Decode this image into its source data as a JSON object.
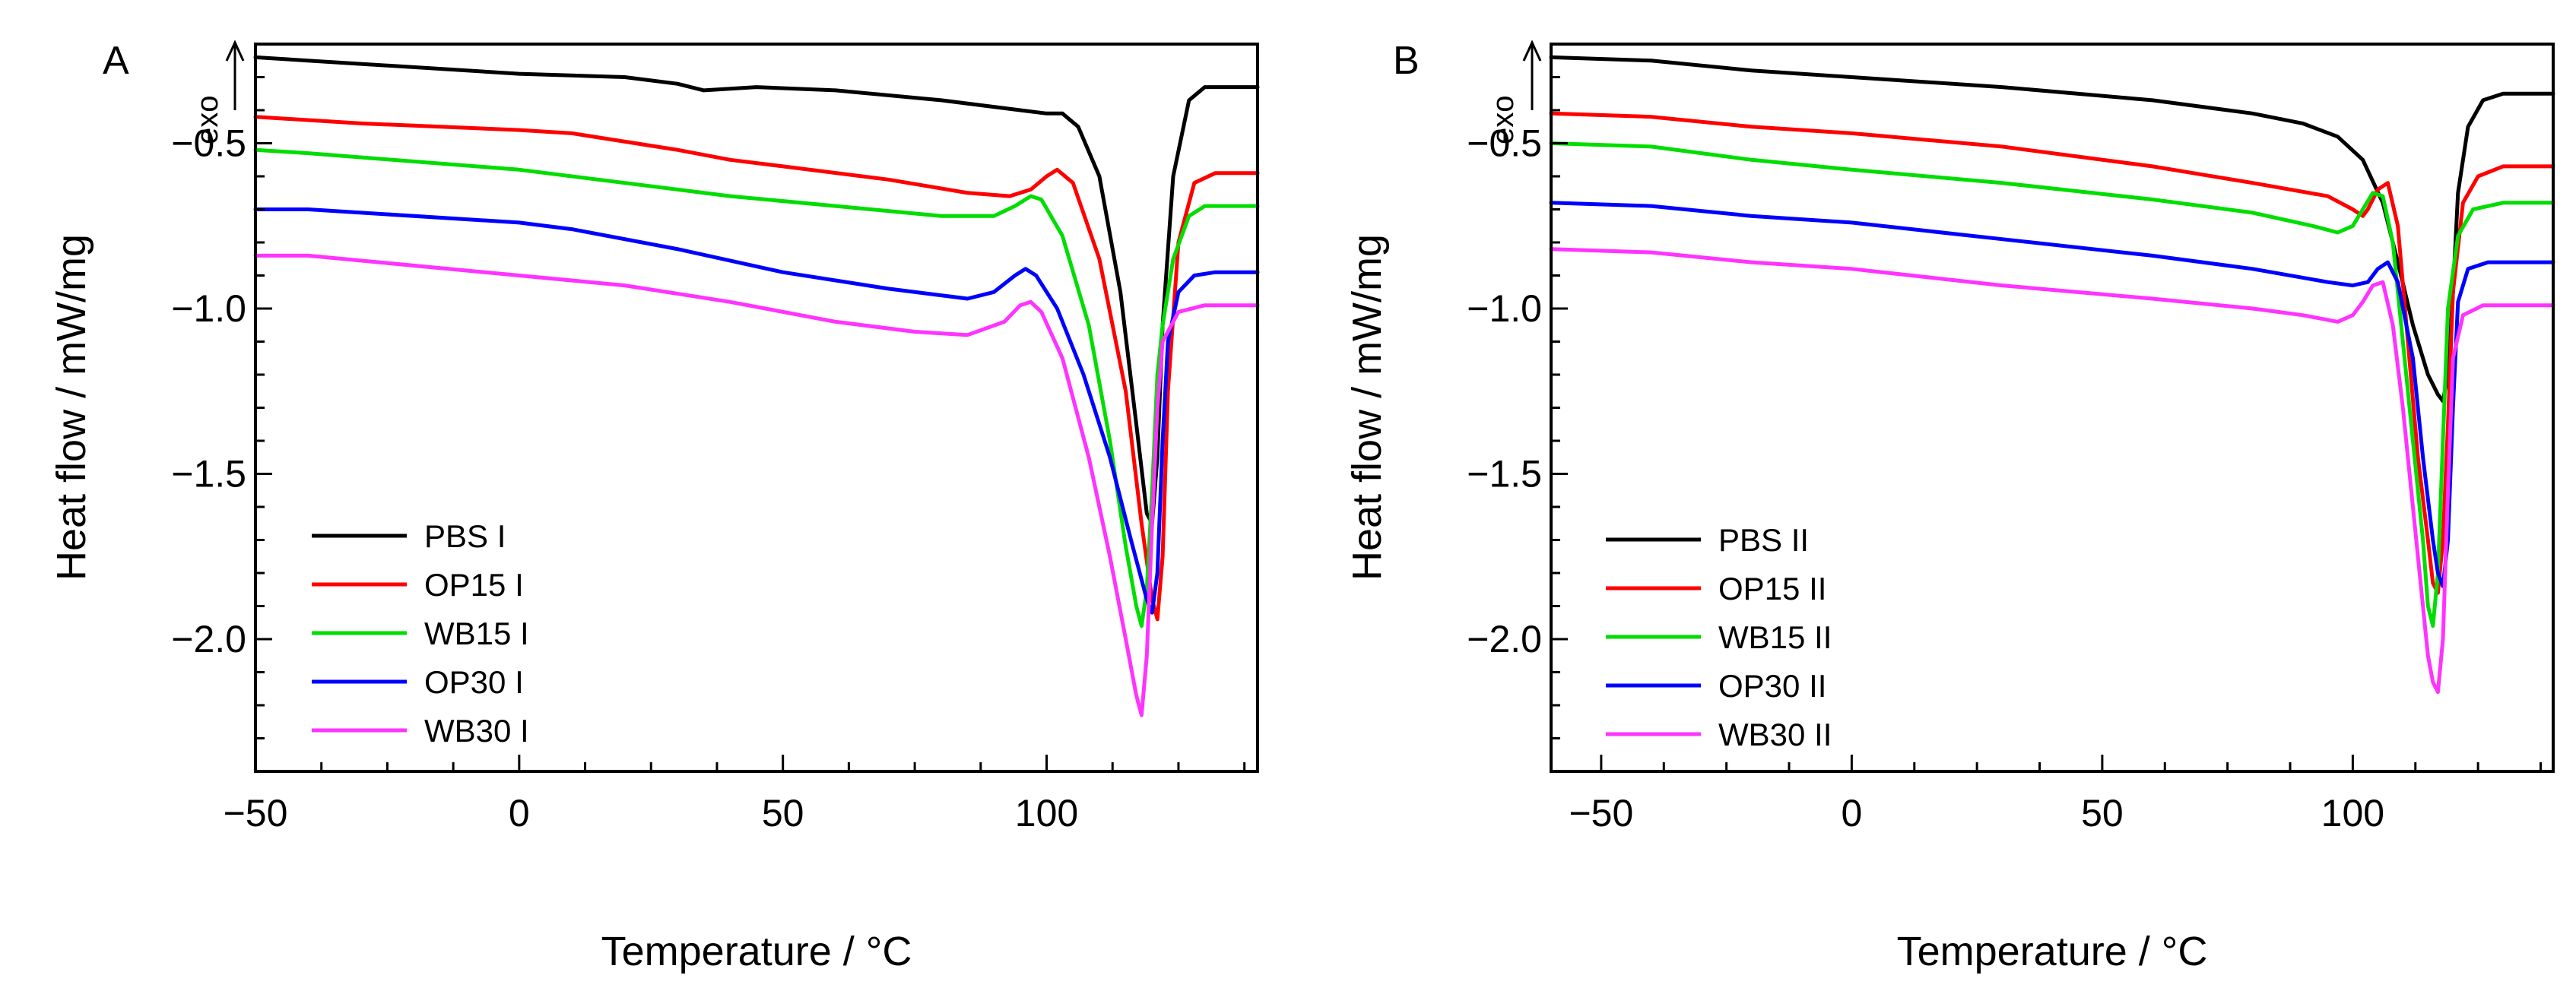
{
  "chart_data": [
    {
      "panel_label": "A",
      "type": "line",
      "xlabel": "Temperature / °C",
      "ylabel": "Heat flow / mW/mg",
      "exo_label": "exo",
      "xlim": [
        -50,
        140
      ],
      "ylim": [
        -2.4,
        -0.2
      ],
      "xticks": [
        -50,
        0,
        50,
        100
      ],
      "yticks": [
        -2.0,
        -1.5,
        -1.0,
        -0.5
      ],
      "xtick_labels": [
        "−50",
        "0",
        "50",
        "100"
      ],
      "ytick_labels": [
        "−2.0",
        "−1.5",
        "−1.0",
        "−0.5"
      ],
      "grid": false,
      "legend_position": "bottom-left",
      "series": [
        {
          "name": "PBS I",
          "color": "#000000",
          "points": [
            [
              -50,
              -0.24
            ],
            [
              -30,
              -0.26
            ],
            [
              0,
              -0.29
            ],
            [
              20,
              -0.3
            ],
            [
              30,
              -0.32
            ],
            [
              35,
              -0.34
            ],
            [
              45,
              -0.33
            ],
            [
              60,
              -0.34
            ],
            [
              80,
              -0.37
            ],
            [
              95,
              -0.4
            ],
            [
              100,
              -0.41
            ],
            [
              103,
              -0.41
            ],
            [
              106,
              -0.45
            ],
            [
              110,
              -0.6
            ],
            [
              114,
              -0.95
            ],
            [
              117,
              -1.35
            ],
            [
              119,
              -1.62
            ],
            [
              120,
              -1.65
            ],
            [
              121,
              -1.45
            ],
            [
              122,
              -1.05
            ],
            [
              124,
              -0.6
            ],
            [
              127,
              -0.37
            ],
            [
              130,
              -0.33
            ],
            [
              140,
              -0.33
            ]
          ]
        },
        {
          "name": "OP15 I",
          "color": "#ff0000",
          "points": [
            [
              -50,
              -0.42
            ],
            [
              -30,
              -0.44
            ],
            [
              0,
              -0.46
            ],
            [
              10,
              -0.47
            ],
            [
              30,
              -0.52
            ],
            [
              40,
              -0.55
            ],
            [
              50,
              -0.57
            ],
            [
              70,
              -0.61
            ],
            [
              85,
              -0.65
            ],
            [
              93,
              -0.66
            ],
            [
              97,
              -0.64
            ],
            [
              100,
              -0.6
            ],
            [
              102,
              -0.58
            ],
            [
              105,
              -0.62
            ],
            [
              110,
              -0.85
            ],
            [
              115,
              -1.25
            ],
            [
              118,
              -1.65
            ],
            [
              120,
              -1.88
            ],
            [
              121,
              -1.94
            ],
            [
              122,
              -1.75
            ],
            [
              123,
              -1.25
            ],
            [
              125,
              -0.8
            ],
            [
              128,
              -0.62
            ],
            [
              132,
              -0.59
            ],
            [
              140,
              -0.59
            ]
          ]
        },
        {
          "name": "WB15 I",
          "color": "#00dd00",
          "points": [
            [
              -50,
              -0.52
            ],
            [
              -40,
              -0.53
            ],
            [
              0,
              -0.58
            ],
            [
              20,
              -0.62
            ],
            [
              40,
              -0.66
            ],
            [
              60,
              -0.69
            ],
            [
              80,
              -0.72
            ],
            [
              90,
              -0.72
            ],
            [
              94,
              -0.69
            ],
            [
              97,
              -0.66
            ],
            [
              99,
              -0.67
            ],
            [
              103,
              -0.78
            ],
            [
              108,
              -1.05
            ],
            [
              112,
              -1.4
            ],
            [
              115,
              -1.72
            ],
            [
              117,
              -1.9
            ],
            [
              118,
              -1.96
            ],
            [
              119,
              -1.85
            ],
            [
              120,
              -1.55
            ],
            [
              121,
              -1.2
            ],
            [
              122,
              -1.05
            ],
            [
              124,
              -0.85
            ],
            [
              127,
              -0.72
            ],
            [
              130,
              -0.69
            ],
            [
              140,
              -0.69
            ]
          ]
        },
        {
          "name": "OP30 I",
          "color": "#0000ff",
          "points": [
            [
              -50,
              -0.7
            ],
            [
              -40,
              -0.7
            ],
            [
              0,
              -0.74
            ],
            [
              10,
              -0.76
            ],
            [
              30,
              -0.82
            ],
            [
              50,
              -0.89
            ],
            [
              70,
              -0.94
            ],
            [
              85,
              -0.97
            ],
            [
              90,
              -0.95
            ],
            [
              94,
              -0.9
            ],
            [
              96,
              -0.88
            ],
            [
              98,
              -0.9
            ],
            [
              102,
              -1.0
            ],
            [
              107,
              -1.2
            ],
            [
              112,
              -1.45
            ],
            [
              116,
              -1.7
            ],
            [
              119,
              -1.88
            ],
            [
              120,
              -1.92
            ],
            [
              121,
              -1.8
            ],
            [
              122,
              -1.4
            ],
            [
              123,
              -1.1
            ],
            [
              125,
              -0.95
            ],
            [
              128,
              -0.9
            ],
            [
              132,
              -0.89
            ],
            [
              140,
              -0.89
            ]
          ]
        },
        {
          "name": "WB30 I",
          "color": "#ff33ff",
          "points": [
            [
              -50,
              -0.84
            ],
            [
              -40,
              -0.84
            ],
            [
              0,
              -0.9
            ],
            [
              20,
              -0.93
            ],
            [
              40,
              -0.98
            ],
            [
              60,
              -1.04
            ],
            [
              75,
              -1.07
            ],
            [
              85,
              -1.08
            ],
            [
              92,
              -1.04
            ],
            [
              95,
              -0.99
            ],
            [
              97,
              -0.98
            ],
            [
              99,
              -1.01
            ],
            [
              103,
              -1.15
            ],
            [
              108,
              -1.45
            ],
            [
              112,
              -1.75
            ],
            [
              115,
              -2.0
            ],
            [
              117,
              -2.17
            ],
            [
              118,
              -2.23
            ],
            [
              119,
              -2.05
            ],
            [
              120,
              -1.65
            ],
            [
              121,
              -1.3
            ],
            [
              122,
              -1.1
            ],
            [
              125,
              -1.01
            ],
            [
              130,
              -0.99
            ],
            [
              140,
              -0.99
            ]
          ]
        }
      ]
    },
    {
      "panel_label": "B",
      "type": "line",
      "xlabel": "Temperature / °C",
      "ylabel": "Heat flow / mW/mg",
      "exo_label": "exo",
      "xlim": [
        -60,
        140
      ],
      "ylim": [
        -2.4,
        -0.2
      ],
      "xticks": [
        -50,
        0,
        50,
        100
      ],
      "yticks": [
        -2.0,
        -1.5,
        -1.0,
        -0.5
      ],
      "xtick_labels": [
        "−50",
        "0",
        "50",
        "100"
      ],
      "ytick_labels": [
        "−2.0",
        "−1.5",
        "−1.0",
        "−0.5"
      ],
      "grid": false,
      "legend_position": "bottom-left",
      "series": [
        {
          "name": "PBS II",
          "color": "#000000",
          "points": [
            [
              -60,
              -0.24
            ],
            [
              -40,
              -0.25
            ],
            [
              -20,
              -0.28
            ],
            [
              0,
              -0.3
            ],
            [
              30,
              -0.33
            ],
            [
              60,
              -0.37
            ],
            [
              80,
              -0.41
            ],
            [
              90,
              -0.44
            ],
            [
              97,
              -0.48
            ],
            [
              102,
              -0.55
            ],
            [
              106,
              -0.68
            ],
            [
              109,
              -0.86
            ],
            [
              112,
              -1.05
            ],
            [
              115,
              -1.2
            ],
            [
              117,
              -1.26
            ],
            [
              118,
              -1.28
            ],
            [
              119,
              -1.2
            ],
            [
              120,
              -0.95
            ],
            [
              121,
              -0.65
            ],
            [
              123,
              -0.45
            ],
            [
              126,
              -0.37
            ],
            [
              130,
              -0.35
            ],
            [
              140,
              -0.35
            ]
          ]
        },
        {
          "name": "OP15 II",
          "color": "#ff0000",
          "points": [
            [
              -60,
              -0.41
            ],
            [
              -40,
              -0.42
            ],
            [
              -20,
              -0.45
            ],
            [
              0,
              -0.47
            ],
            [
              30,
              -0.51
            ],
            [
              60,
              -0.57
            ],
            [
              80,
              -0.62
            ],
            [
              95,
              -0.66
            ],
            [
              100,
              -0.7
            ],
            [
              102,
              -0.72
            ],
            [
              103,
              -0.7
            ],
            [
              105,
              -0.64
            ],
            [
              107,
              -0.62
            ],
            [
              109,
              -0.75
            ],
            [
              111,
              -1.1
            ],
            [
              113,
              -1.45
            ],
            [
              115,
              -1.7
            ],
            [
              116,
              -1.83
            ],
            [
              117,
              -1.86
            ],
            [
              118,
              -1.7
            ],
            [
              119,
              -1.35
            ],
            [
              120,
              -0.95
            ],
            [
              122,
              -0.68
            ],
            [
              125,
              -0.6
            ],
            [
              130,
              -0.57
            ],
            [
              140,
              -0.57
            ]
          ]
        },
        {
          "name": "WB15 II",
          "color": "#00dd00",
          "points": [
            [
              -60,
              -0.5
            ],
            [
              -40,
              -0.51
            ],
            [
              -20,
              -0.55
            ],
            [
              0,
              -0.58
            ],
            [
              30,
              -0.62
            ],
            [
              60,
              -0.67
            ],
            [
              80,
              -0.71
            ],
            [
              92,
              -0.75
            ],
            [
              97,
              -0.77
            ],
            [
              100,
              -0.75
            ],
            [
              102,
              -0.7
            ],
            [
              104,
              -0.65
            ],
            [
              106,
              -0.66
            ],
            [
              108,
              -0.8
            ],
            [
              110,
              -1.1
            ],
            [
              112,
              -1.4
            ],
            [
              114,
              -1.7
            ],
            [
              115,
              -1.9
            ],
            [
              116,
              -1.96
            ],
            [
              117,
              -1.8
            ],
            [
              118,
              -1.4
            ],
            [
              119,
              -1.0
            ],
            [
              121,
              -0.78
            ],
            [
              124,
              -0.7
            ],
            [
              130,
              -0.68
            ],
            [
              140,
              -0.68
            ]
          ]
        },
        {
          "name": "OP30 II",
          "color": "#0000ff",
          "points": [
            [
              -60,
              -0.68
            ],
            [
              -40,
              -0.69
            ],
            [
              -20,
              -0.72
            ],
            [
              0,
              -0.74
            ],
            [
              30,
              -0.79
            ],
            [
              60,
              -0.84
            ],
            [
              80,
              -0.88
            ],
            [
              95,
              -0.92
            ],
            [
              100,
              -0.93
            ],
            [
              103,
              -0.92
            ],
            [
              105,
              -0.88
            ],
            [
              107,
              -0.86
            ],
            [
              109,
              -0.92
            ],
            [
              112,
              -1.15
            ],
            [
              114,
              -1.45
            ],
            [
              116,
              -1.7
            ],
            [
              117,
              -1.8
            ],
            [
              118,
              -1.84
            ],
            [
              119,
              -1.7
            ],
            [
              120,
              -1.3
            ],
            [
              121,
              -0.98
            ],
            [
              123,
              -0.88
            ],
            [
              127,
              -0.86
            ],
            [
              140,
              -0.86
            ]
          ]
        },
        {
          "name": "WB30 II",
          "color": "#ff33ff",
          "points": [
            [
              -60,
              -0.82
            ],
            [
              -40,
              -0.83
            ],
            [
              -20,
              -0.86
            ],
            [
              0,
              -0.88
            ],
            [
              30,
              -0.93
            ],
            [
              60,
              -0.97
            ],
            [
              80,
              -1.0
            ],
            [
              90,
              -1.02
            ],
            [
              97,
              -1.04
            ],
            [
              100,
              -1.02
            ],
            [
              102,
              -0.98
            ],
            [
              104,
              -0.93
            ],
            [
              106,
              -0.92
            ],
            [
              108,
              -1.05
            ],
            [
              110,
              -1.3
            ],
            [
              112,
              -1.6
            ],
            [
              114,
              -1.9
            ],
            [
              115,
              -2.05
            ],
            [
              116,
              -2.13
            ],
            [
              117,
              -2.16
            ],
            [
              118,
              -2.0
            ],
            [
              119,
              -1.55
            ],
            [
              120,
              -1.15
            ],
            [
              122,
              -1.02
            ],
            [
              126,
              -0.99
            ],
            [
              140,
              -0.99
            ]
          ]
        }
      ]
    }
  ]
}
